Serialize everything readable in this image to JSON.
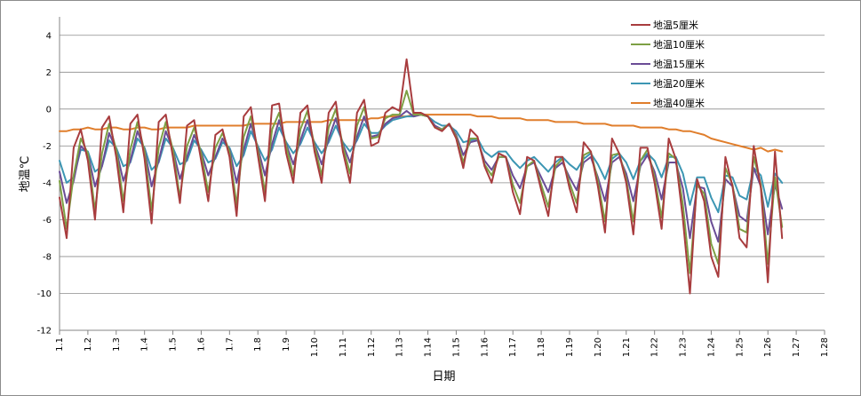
{
  "chart_data": {
    "type": "line",
    "title": "",
    "xlabel": "日期",
    "ylabel": "地温℃",
    "ylim": [
      -12,
      5
    ],
    "yticks": [
      -12,
      -10,
      -8,
      -6,
      -4,
      -2,
      0,
      2,
      4
    ],
    "x_tick_labels": [
      "1.1",
      "1.2",
      "1.3",
      "1.4",
      "1.5",
      "1.6",
      "1.7",
      "1.8",
      "1.9",
      "1.10",
      "1.11",
      "1.12",
      "1.13",
      "1.14",
      "1.15",
      "1.16",
      "1.17",
      "1.18",
      "1.19",
      "1.20",
      "1.21",
      "1.22",
      "1.23",
      "1.24",
      "1.25",
      "1.26",
      "1.27",
      "1.28"
    ],
    "grid": "horizontal",
    "legend_position": "top-right",
    "samples_per_day": 4,
    "series": [
      {
        "name": "地温5厘米",
        "color": "#a83c3e",
        "values": [
          -4.8,
          -7.0,
          -2.1,
          -1.1,
          -2.8,
          -6.0,
          -1.0,
          -0.4,
          -2.6,
          -5.6,
          -0.8,
          -0.3,
          -2.7,
          -6.2,
          -0.7,
          -0.3,
          -2.6,
          -5.1,
          -0.9,
          -0.6,
          -2.8,
          -5.0,
          -1.4,
          -1.1,
          -2.6,
          -5.8,
          -0.4,
          0.1,
          -2.5,
          -5.0,
          0.2,
          0.3,
          -2.4,
          -4.0,
          -0.2,
          0.2,
          -2.3,
          -4.0,
          -0.2,
          0.4,
          -2.3,
          -4.0,
          -0.2,
          0.5,
          -2.0,
          -1.8,
          -0.2,
          0.1,
          -0.1,
          2.7,
          -0.2,
          -0.2,
          -0.4,
          -1.0,
          -1.2,
          -0.8,
          -1.6,
          -3.2,
          -1.1,
          -1.5,
          -3.1,
          -4.0,
          -2.4,
          -2.6,
          -4.5,
          -5.7,
          -2.6,
          -2.8,
          -4.4,
          -5.8,
          -2.6,
          -2.6,
          -4.3,
          -5.6,
          -1.8,
          -2.3,
          -4.2,
          -6.7,
          -1.6,
          -2.4,
          -4.0,
          -6.8,
          -2.1,
          -2.1,
          -4.0,
          -6.5,
          -1.6,
          -2.7,
          -6.0,
          -10.0,
          -3.8,
          -5.0,
          -8.0,
          -9.1,
          -2.6,
          -4.2,
          -7.0,
          -7.5,
          -2.0,
          -4.3,
          -9.4,
          -2.3,
          -7.0
        ]
      },
      {
        "name": "地温10厘米",
        "color": "#7da044",
        "values": [
          -3.9,
          -6.5,
          -3.6,
          -1.6,
          -2.4,
          -5.5,
          -2.4,
          -0.8,
          -2.2,
          -5.0,
          -2.2,
          -0.7,
          -2.3,
          -5.5,
          -2.1,
          -0.7,
          -2.2,
          -4.8,
          -2.0,
          -1.0,
          -2.4,
          -4.5,
          -2.1,
          -1.3,
          -2.3,
          -5.2,
          -1.5,
          -0.4,
          -2.2,
          -4.5,
          -1.1,
          -0.2,
          -2.0,
          -3.6,
          -1.1,
          -0.1,
          -2.0,
          -3.6,
          -1.0,
          0.0,
          -2.0,
          -3.5,
          -0.9,
          0.1,
          -1.6,
          -1.5,
          -0.5,
          -0.3,
          -0.3,
          1.0,
          -0.3,
          -0.3,
          -0.4,
          -1.0,
          -1.1,
          -0.8,
          -1.5,
          -2.9,
          -1.6,
          -1.6,
          -3.0,
          -3.6,
          -2.6,
          -2.6,
          -4.1,
          -5.1,
          -3.1,
          -2.8,
          -4.1,
          -5.3,
          -3.1,
          -2.7,
          -4.0,
          -5.1,
          -2.5,
          -2.3,
          -3.9,
          -6.1,
          -2.5,
          -2.4,
          -3.8,
          -6.1,
          -2.8,
          -2.2,
          -3.7,
          -5.9,
          -2.4,
          -2.7,
          -5.2,
          -8.9,
          -4.1,
          -4.6,
          -7.3,
          -8.4,
          -3.2,
          -4.1,
          -6.5,
          -6.7,
          -2.6,
          -4.1,
          -8.4,
          -3.7,
          -6.4
        ]
      },
      {
        "name": "地温15厘米",
        "color": "#6a4c96",
        "values": [
          -3.4,
          -5.1,
          -3.9,
          -2.0,
          -2.4,
          -4.2,
          -3.1,
          -1.3,
          -2.2,
          -3.9,
          -2.8,
          -1.2,
          -2.2,
          -4.2,
          -2.8,
          -1.2,
          -2.2,
          -3.8,
          -2.6,
          -1.4,
          -2.3,
          -3.6,
          -2.6,
          -1.6,
          -2.2,
          -4.0,
          -2.2,
          -0.8,
          -2.1,
          -3.6,
          -1.9,
          -0.6,
          -1.9,
          -3.0,
          -1.7,
          -0.6,
          -1.9,
          -3.0,
          -1.6,
          -0.5,
          -1.9,
          -2.9,
          -1.5,
          -0.4,
          -1.5,
          -1.4,
          -0.8,
          -0.5,
          -0.4,
          -0.1,
          -0.4,
          -0.3,
          -0.4,
          -0.9,
          -1.1,
          -0.8,
          -1.4,
          -2.5,
          -1.8,
          -1.7,
          -2.8,
          -3.3,
          -2.6,
          -2.6,
          -3.6,
          -4.3,
          -3.1,
          -2.9,
          -3.7,
          -4.5,
          -3.2,
          -2.9,
          -3.7,
          -4.4,
          -2.9,
          -2.6,
          -3.7,
          -5.0,
          -2.9,
          -2.6,
          -3.5,
          -5.0,
          -3.1,
          -2.5,
          -3.4,
          -4.9,
          -2.9,
          -2.9,
          -4.3,
          -7.0,
          -4.2,
          -4.3,
          -6.1,
          -7.2,
          -3.8,
          -4.2,
          -5.8,
          -6.1,
          -3.2,
          -4.2,
          -6.8,
          -4.1,
          -5.4
        ]
      },
      {
        "name": "地温20厘米",
        "color": "#3c96b3",
        "values": [
          -2.8,
          -4.0,
          -3.7,
          -2.2,
          -2.3,
          -3.4,
          -3.1,
          -1.7,
          -2.1,
          -3.1,
          -2.9,
          -1.6,
          -2.1,
          -3.3,
          -2.9,
          -1.6,
          -2.1,
          -3.0,
          -2.8,
          -1.7,
          -2.2,
          -2.9,
          -2.7,
          -1.8,
          -2.1,
          -3.1,
          -2.5,
          -1.2,
          -2.0,
          -2.8,
          -2.2,
          -1.0,
          -1.8,
          -2.4,
          -1.9,
          -1.0,
          -1.8,
          -2.4,
          -1.8,
          -0.9,
          -1.8,
          -2.3,
          -1.7,
          -0.8,
          -1.3,
          -1.3,
          -0.9,
          -0.6,
          -0.5,
          -0.4,
          -0.4,
          -0.3,
          -0.4,
          -0.7,
          -0.9,
          -0.9,
          -1.2,
          -1.8,
          -1.7,
          -1.6,
          -2.3,
          -2.6,
          -2.3,
          -2.3,
          -2.8,
          -3.2,
          -2.8,
          -2.6,
          -3.0,
          -3.4,
          -2.9,
          -2.6,
          -3.0,
          -3.3,
          -2.7,
          -2.4,
          -3.0,
          -3.8,
          -2.7,
          -2.4,
          -2.9,
          -3.8,
          -2.8,
          -2.4,
          -2.8,
          -3.7,
          -2.6,
          -2.6,
          -3.5,
          -5.2,
          -3.7,
          -3.7,
          -4.8,
          -5.6,
          -3.6,
          -3.7,
          -4.7,
          -4.9,
          -3.2,
          -3.6,
          -5.3,
          -3.5,
          -4.0
        ]
      },
      {
        "name": "地温40厘米",
        "color": "#e07e2c",
        "values": [
          -1.2,
          -1.2,
          -1.1,
          -1.1,
          -1.0,
          -1.1,
          -1.1,
          -1.0,
          -1.0,
          -1.1,
          -1.1,
          -1.0,
          -1.0,
          -1.1,
          -1.1,
          -1.0,
          -1.0,
          -1.0,
          -1.0,
          -0.9,
          -0.9,
          -0.9,
          -0.9,
          -0.9,
          -0.9,
          -0.9,
          -0.9,
          -0.8,
          -0.8,
          -0.8,
          -0.8,
          -0.8,
          -0.7,
          -0.7,
          -0.7,
          -0.7,
          -0.7,
          -0.7,
          -0.6,
          -0.6,
          -0.6,
          -0.6,
          -0.6,
          -0.6,
          -0.5,
          -0.5,
          -0.4,
          -0.4,
          -0.4,
          -0.4,
          -0.3,
          -0.3,
          -0.3,
          -0.3,
          -0.3,
          -0.3,
          -0.3,
          -0.3,
          -0.3,
          -0.4,
          -0.4,
          -0.4,
          -0.5,
          -0.5,
          -0.5,
          -0.5,
          -0.6,
          -0.6,
          -0.6,
          -0.6,
          -0.7,
          -0.7,
          -0.7,
          -0.7,
          -0.8,
          -0.8,
          -0.8,
          -0.8,
          -0.9,
          -0.9,
          -0.9,
          -0.9,
          -1.0,
          -1.0,
          -1.0,
          -1.0,
          -1.1,
          -1.1,
          -1.2,
          -1.2,
          -1.3,
          -1.4,
          -1.6,
          -1.7,
          -1.8,
          -1.9,
          -2.0,
          -2.1,
          -2.2,
          -2.1,
          -2.3,
          -2.2,
          -2.3
        ]
      }
    ]
  }
}
